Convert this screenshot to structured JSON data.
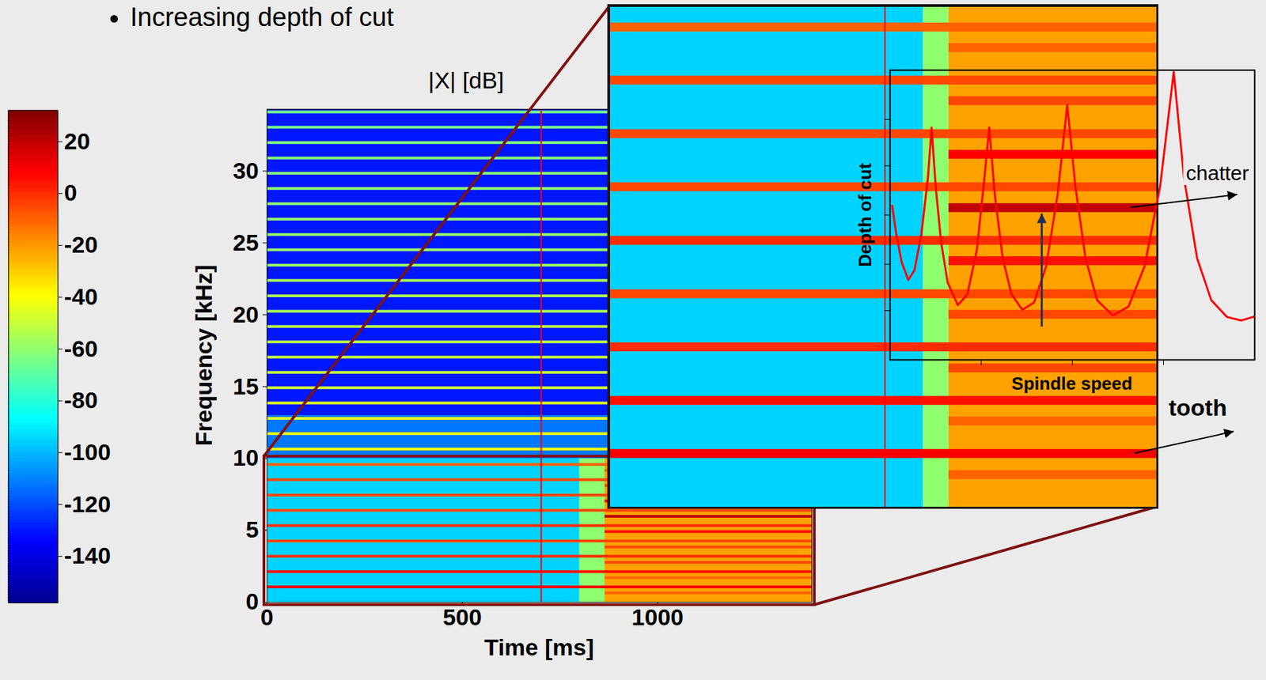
{
  "slide": {
    "bullet": "Increasing depth of cut"
  },
  "chart_data": [
    {
      "type": "heatmap",
      "title": "|X| [dB]",
      "x_label": "Time [ms]",
      "y_label": "Frequency [kHz]",
      "xlim": [
        0,
        1395
      ],
      "ylim": [
        0,
        34.3
      ],
      "xticks": [
        0,
        500,
        1000
      ],
      "yticks": [
        0,
        5,
        10,
        15,
        20,
        25,
        30
      ],
      "colorbar": {
        "range": [
          -158,
          32
        ],
        "ticks": [
          20,
          0,
          -20,
          -40,
          -60,
          -80,
          -100,
          -120,
          -140
        ]
      },
      "background": [
        {
          "t1": 0,
          "t2": 800,
          "f1": 0,
          "f2": 10,
          "db": -95
        },
        {
          "t1": 800,
          "t2": 865,
          "f1": 0,
          "f2": 10,
          "db": -60
        },
        {
          "t1": 865,
          "t2": 1395,
          "f1": 0,
          "f2": 10,
          "db": -22
        },
        {
          "t1": 0,
          "t2": 1395,
          "f1": 10,
          "f2": 34.3,
          "db": -130
        },
        {
          "t1": 0,
          "t2": 1395,
          "f1": 10,
          "f2": 13,
          "db": -112
        }
      ],
      "tooth_lines": {
        "f": [
          1.07,
          2.13,
          3.2,
          4.26,
          5.33,
          6.4,
          7.46,
          8.53,
          9.59,
          10.66,
          11.73,
          12.79,
          13.86,
          14.92,
          15.99,
          17.06,
          18.12,
          19.19,
          20.25,
          21.32,
          22.39,
          23.45,
          24.52,
          25.58,
          26.65,
          27.72,
          28.78,
          29.85,
          30.91,
          31.98,
          33.05,
          34.11
        ],
        "db": [
          10,
          5,
          0,
          -5,
          0,
          -5,
          -5,
          -5,
          -10,
          -40,
          -42,
          -45,
          -45,
          -48,
          -50,
          -50,
          -52,
          -52,
          -55,
          -55,
          -55,
          -58,
          -58,
          -58,
          -60,
          -60,
          -60,
          -62,
          -62,
          -62,
          -65,
          -65
        ]
      },
      "chatter_lines": {
        "t_start": 865,
        "f": [
          0.65,
          1.72,
          2.78,
          3.85,
          4.92,
          5.98,
          7.05,
          8.12,
          9.18
        ],
        "db": [
          -10,
          -10,
          -5,
          -5,
          5,
          20,
          8,
          -5,
          -10
        ]
      },
      "vline": {
        "x": 702,
        "color": "#ff0000"
      },
      "zoom": {
        "xlim": [
          0,
          1395
        ],
        "ylim": [
          0,
          10
        ],
        "tick_labels": false
      },
      "annotations": [
        {
          "text": "chatter",
          "x": 1330,
          "y": 5.98
        },
        {
          "text": "tooth",
          "x": 1340,
          "y": 1.07
        }
      ]
    },
    {
      "type": "line",
      "x_label": "Spindle speed",
      "y_label": "Depth of cut",
      "x": [
        0.6,
        1.7,
        3.2,
        5.0,
        6.7,
        8.6,
        10.4,
        11.4,
        12.5,
        14.0,
        15.8,
        18.6,
        21.2,
        23.8,
        25.9,
        27.2,
        28.7,
        30.9,
        33.3,
        36.3,
        39.5,
        42.8,
        46.0,
        48.6,
        50.8,
        53.6,
        56.8,
        61.1,
        65.4,
        69.8,
        74.1,
        77.8,
        80.6,
        84.2,
        88.1,
        92.4,
        96.3,
        100
      ],
      "values": [
        53.2,
        43.5,
        33.7,
        27.6,
        30.9,
        43.5,
        63.0,
        80.2,
        60.2,
        40.7,
        26.7,
        18.9,
        22.6,
        37.9,
        63.0,
        80.2,
        57.4,
        35.1,
        22.6,
        17.3,
        19.8,
        32.3,
        57.4,
        88.0,
        60.2,
        35.1,
        20.6,
        15.3,
        18.4,
        32.3,
        60.2,
        99.4,
        63.0,
        35.1,
        20.6,
        14.8,
        13.6,
        15.0
      ],
      "color": "#ff0000",
      "xlim": [
        0,
        100
      ],
      "ylim": [
        0,
        100
      ],
      "xticks": [
        25,
        50,
        75
      ],
      "yticks": [
        17,
        33,
        50,
        67,
        83
      ],
      "tick_labels": false
    }
  ]
}
